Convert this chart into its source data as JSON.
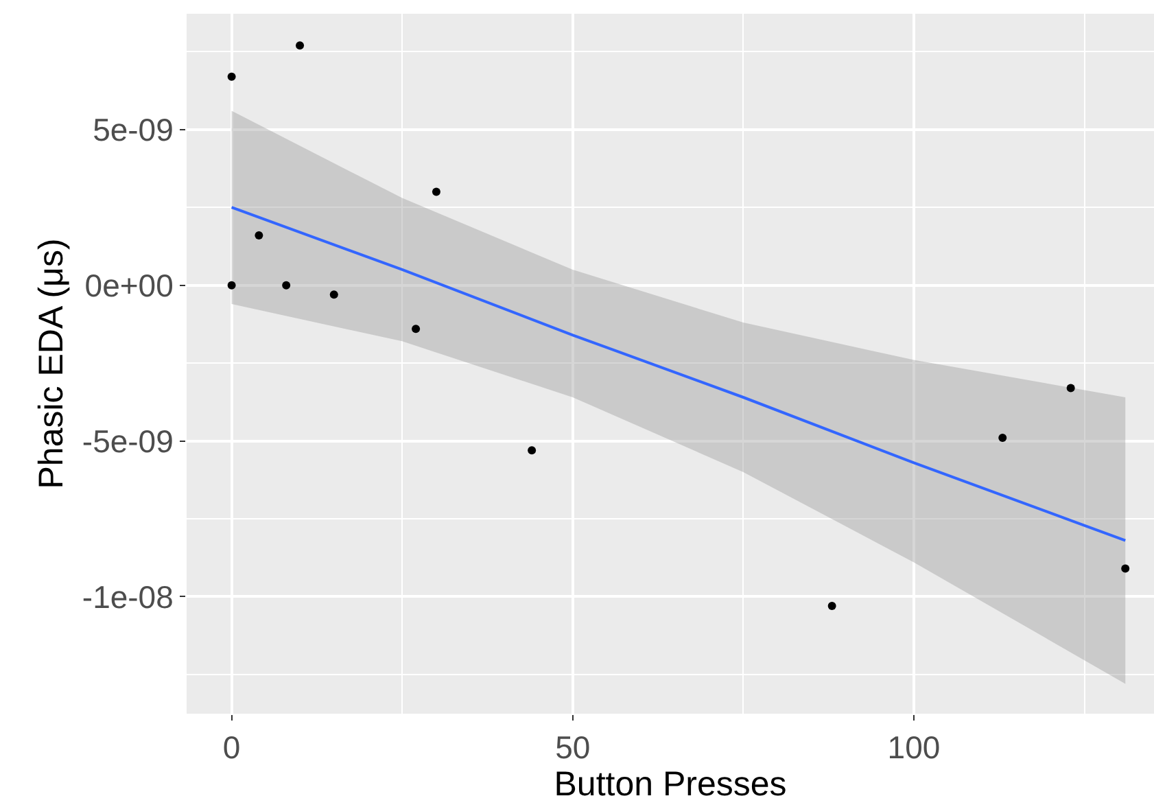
{
  "chart_data": {
    "type": "scatter",
    "xlabel": "Button Presses",
    "ylabel": "Phasic EDA (μs)",
    "xlim": [
      -6.6,
      135.2
    ],
    "xticks": [
      0,
      50,
      100
    ],
    "ylim": [
      -1.376e-08,
      8.72e-09
    ],
    "yticks": [
      {
        "value": -1e-08,
        "label": "-1e-08"
      },
      {
        "value": -5e-09,
        "label": "-5e-09"
      },
      {
        "value": 0,
        "label": "0e+00"
      },
      {
        "value": 5e-09,
        "label": "5e-09"
      }
    ],
    "grid": true,
    "series": [
      {
        "color": "#000000",
        "marker": "circle",
        "x": [
          0,
          10,
          4,
          0,
          8,
          15,
          30,
          27,
          44,
          88,
          113,
          123,
          131
        ],
        "values": [
          6.7e-09,
          7.7e-09,
          1.6e-09,
          0,
          0,
          -3e-10,
          3e-09,
          -1.4e-09,
          -5.3e-09,
          -1.03e-08,
          -4.9e-09,
          -3.3e-09,
          -9.1e-09
        ]
      },
      {
        "type": "line",
        "color": "#3366ff",
        "line_style": "solid",
        "x": [
          0,
          25,
          50,
          75,
          100,
          131
        ],
        "values": [
          2.5e-09,
          5e-10,
          -1.6e-09,
          -3.6e-09,
          -5.7e-09,
          -8.2e-09
        ],
        "lower": [
          -6e-10,
          -1.8e-09,
          -3.6e-09,
          -6e-09,
          -8.9e-09,
          -1.28e-08
        ],
        "upper": [
          5.6e-09,
          2.8e-09,
          5e-10,
          -1.2e-09,
          -2.4e-09,
          -3.6e-09
        ]
      }
    ]
  }
}
